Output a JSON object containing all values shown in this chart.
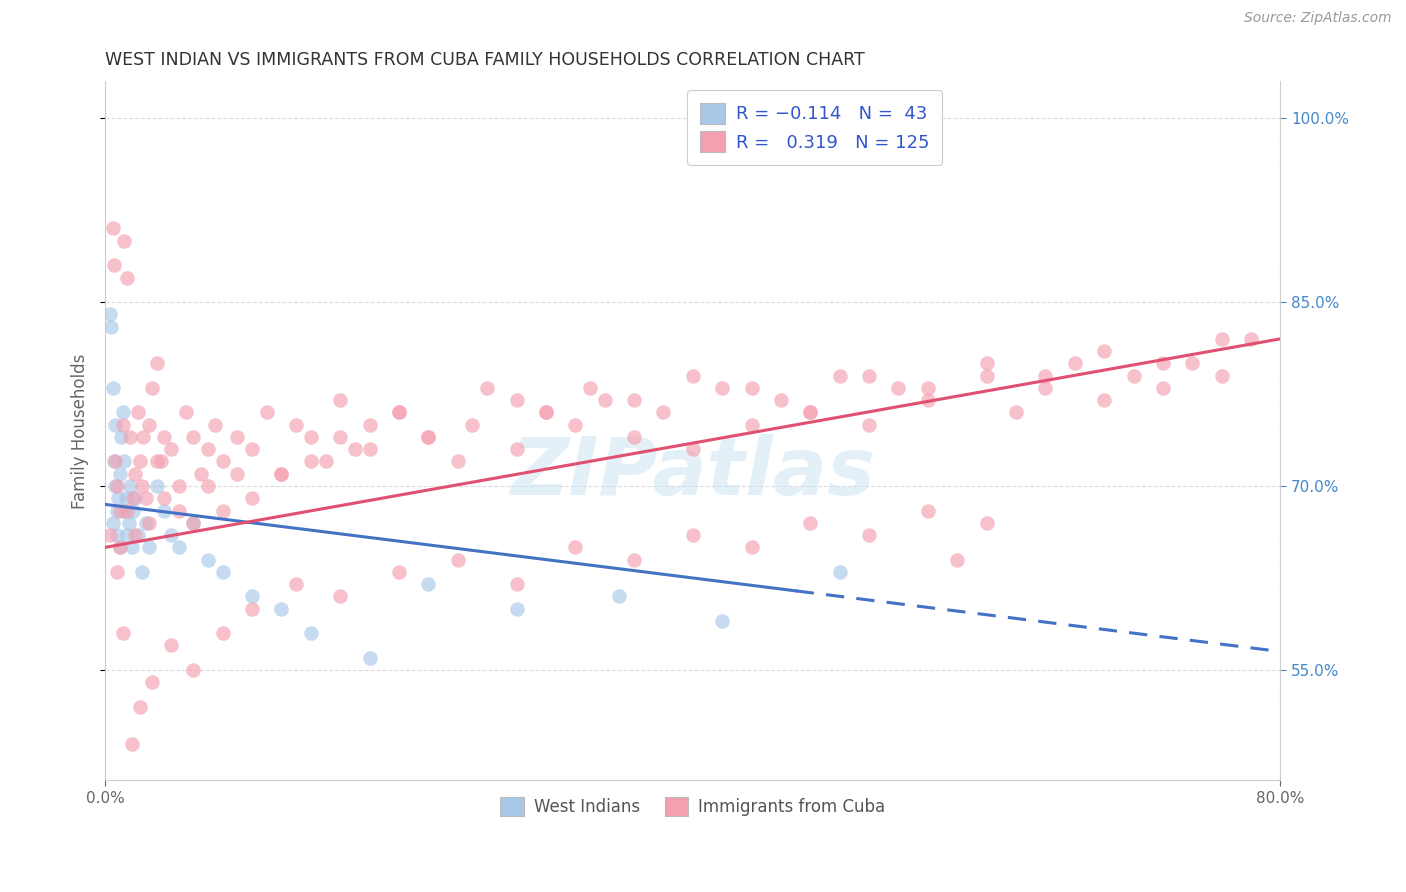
{
  "title": "WEST INDIAN VS IMMIGRANTS FROM CUBA FAMILY HOUSEHOLDS CORRELATION CHART",
  "source": "Source: ZipAtlas.com",
  "ylabel": "Family Households",
  "legend_label1": "West Indians",
  "legend_label2": "Immigrants from Cuba",
  "watermark": "ZIPatlas",
  "color_blue": "#a8c8e8",
  "color_pink": "#f4a0b0",
  "color_blue_line": "#4472c4",
  "color_pink_line": "#e05070",
  "background": "#ffffff",
  "xmin": 0.0,
  "xmax": 80.0,
  "ymin": 46.0,
  "ymax": 103.0,
  "yticks": [
    55.0,
    70.0,
    85.0,
    100.0
  ],
  "ytick_labels": [
    "55.0%",
    "70.0%",
    "85.0%",
    "100.0%"
  ],
  "blue_line_x0": 0.0,
  "blue_line_y0": 68.5,
  "blue_line_x1": 80.0,
  "blue_line_y1": 56.5,
  "blue_solid_end": 47.0,
  "pink_line_x0": 0.0,
  "pink_line_y0": 65.0,
  "pink_line_x1": 80.0,
  "pink_line_y1": 82.0,
  "wi_x": [
    0.3,
    0.4,
    0.5,
    0.5,
    0.6,
    0.7,
    0.7,
    0.8,
    0.8,
    0.9,
    1.0,
    1.0,
    1.1,
    1.2,
    1.3,
    1.3,
    1.4,
    1.5,
    1.6,
    1.7,
    1.8,
    1.9,
    2.0,
    2.2,
    2.5,
    2.8,
    3.0,
    3.5,
    4.0,
    4.5,
    5.0,
    6.0,
    7.0,
    8.0,
    10.0,
    12.0,
    14.0,
    18.0,
    22.0,
    28.0,
    35.0,
    42.0,
    50.0
  ],
  "wi_y": [
    84.0,
    83.0,
    78.0,
    67.0,
    72.0,
    75.0,
    70.0,
    68.0,
    66.0,
    69.0,
    71.0,
    65.0,
    74.0,
    76.0,
    72.0,
    68.0,
    69.0,
    66.0,
    67.0,
    70.0,
    65.0,
    68.0,
    69.0,
    66.0,
    63.0,
    67.0,
    65.0,
    70.0,
    68.0,
    66.0,
    65.0,
    67.0,
    64.0,
    63.0,
    61.0,
    60.0,
    58.0,
    56.0,
    62.0,
    60.0,
    61.0,
    59.0,
    63.0
  ],
  "cuba_x": [
    0.3,
    0.5,
    0.6,
    0.7,
    0.8,
    1.0,
    1.2,
    1.3,
    1.5,
    1.7,
    1.9,
    2.0,
    2.2,
    2.4,
    2.6,
    2.8,
    3.0,
    3.2,
    3.5,
    3.8,
    4.0,
    4.5,
    5.0,
    5.5,
    6.0,
    6.5,
    7.0,
    7.5,
    8.0,
    9.0,
    10.0,
    11.0,
    12.0,
    13.0,
    14.0,
    15.0,
    16.0,
    17.0,
    18.0,
    20.0,
    22.0,
    24.0,
    26.0,
    28.0,
    30.0,
    32.0,
    34.0,
    36.0,
    38.0,
    40.0,
    42.0,
    44.0,
    46.0,
    48.0,
    50.0,
    52.0,
    54.0,
    56.0,
    58.0,
    60.0,
    62.0,
    64.0,
    66.0,
    68.0,
    70.0,
    72.0,
    74.0,
    76.0,
    78.0,
    1.0,
    1.5,
    2.0,
    2.5,
    3.0,
    3.5,
    4.0,
    5.0,
    6.0,
    7.0,
    8.0,
    9.0,
    10.0,
    12.0,
    14.0,
    16.0,
    18.0,
    20.0,
    22.0,
    25.0,
    28.0,
    30.0,
    33.0,
    36.0,
    40.0,
    44.0,
    48.0,
    52.0,
    56.0,
    60.0,
    64.0,
    68.0,
    72.0,
    76.0,
    0.8,
    1.2,
    1.8,
    2.4,
    3.2,
    4.5,
    6.0,
    8.0,
    10.0,
    13.0,
    16.0,
    20.0,
    24.0,
    28.0,
    32.0,
    36.0,
    40.0,
    44.0,
    48.0,
    52.0,
    56.0,
    60.0,
    64.0,
    68.0,
    72.0
  ],
  "cuba_y": [
    66.0,
    91.0,
    88.0,
    72.0,
    70.0,
    68.0,
    75.0,
    90.0,
    87.0,
    74.0,
    69.0,
    71.0,
    76.0,
    72.0,
    74.0,
    69.0,
    75.0,
    78.0,
    80.0,
    72.0,
    74.0,
    73.0,
    70.0,
    76.0,
    74.0,
    71.0,
    73.0,
    75.0,
    72.0,
    74.0,
    73.0,
    76.0,
    71.0,
    75.0,
    74.0,
    72.0,
    77.0,
    73.0,
    75.0,
    76.0,
    74.0,
    72.0,
    78.0,
    73.0,
    76.0,
    75.0,
    77.0,
    74.0,
    76.0,
    73.0,
    78.0,
    75.0,
    77.0,
    76.0,
    79.0,
    75.0,
    78.0,
    77.0,
    64.0,
    79.0,
    76.0,
    78.0,
    80.0,
    77.0,
    79.0,
    78.0,
    80.0,
    79.0,
    82.0,
    65.0,
    68.0,
    66.0,
    70.0,
    67.0,
    72.0,
    69.0,
    68.0,
    67.0,
    70.0,
    68.0,
    71.0,
    69.0,
    71.0,
    72.0,
    74.0,
    73.0,
    76.0,
    74.0,
    75.0,
    77.0,
    76.0,
    78.0,
    77.0,
    79.0,
    78.0,
    76.0,
    79.0,
    78.0,
    80.0,
    79.0,
    81.0,
    80.0,
    82.0,
    63.0,
    58.0,
    49.0,
    52.0,
    54.0,
    57.0,
    55.0,
    58.0,
    60.0,
    62.0,
    61.0,
    63.0,
    64.0,
    62.0,
    65.0,
    64.0,
    66.0,
    65.0,
    67.0,
    66.0,
    68.0,
    67.0
  ]
}
